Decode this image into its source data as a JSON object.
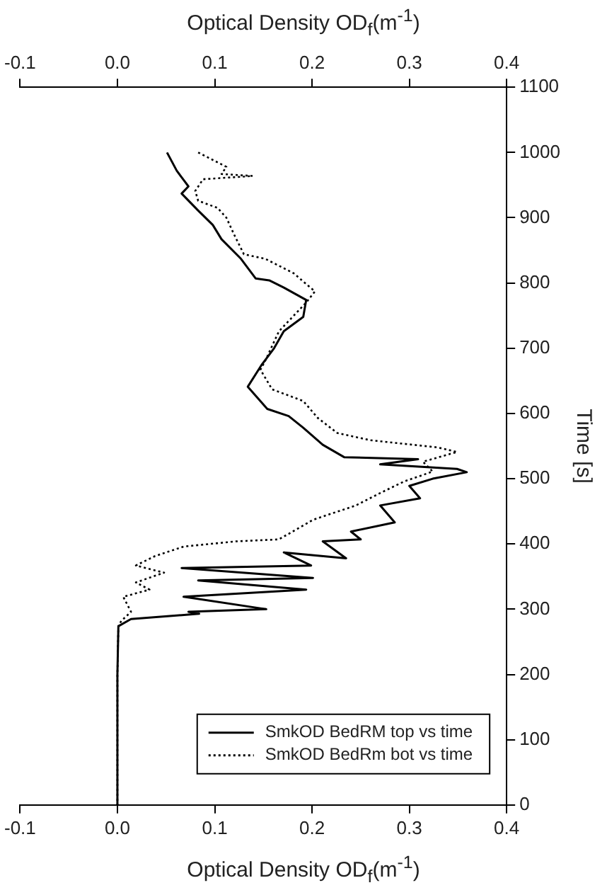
{
  "chart_data": {
    "type": "line",
    "xlabel": "Optical Density OD$_{f}$(m$^{-1}$)",
    "x2label": "Optical Density OD$_{f}$(m$^{-1}$)",
    "ylabel": "Time [s]",
    "xlim": [
      -0.1,
      0.4
    ],
    "xticks": [
      -0.1,
      {
        "value": 0,
        "label": "0.0"
      },
      0.1,
      0.2,
      0.3,
      0.4
    ],
    "x2lim": [
      -0.1,
      0.4
    ],
    "x2ticks": [
      -0.1,
      {
        "value": 0,
        "label": "0.0"
      },
      0.1,
      0.2,
      0.3,
      0.4
    ],
    "ylim": [
      0,
      1100
    ],
    "yticks": [
      0,
      100,
      200,
      300,
      400,
      500,
      600,
      700,
      800,
      900,
      1000,
      1100
    ],
    "grid": false,
    "legend": "bottom right",
    "marker": "none",
    "series": [
      {
        "name": "SmkOD BedRM top vs time",
        "color": "#000000",
        "line_style": "solid",
        "x": [
          0.051,
          0.061,
          0.073,
          0.066,
          0.083,
          0.098,
          0.107,
          0.127,
          0.142,
          0.156,
          0.171,
          0.194,
          0.191,
          0.171,
          0.161,
          0.148,
          0.134,
          0.154,
          0.176,
          0.191,
          0.211,
          0.233,
          0.309,
          0.27,
          0.349,
          0.359,
          0.324,
          0.3,
          0.311,
          0.27,
          0.285,
          0.24,
          0.25,
          0.211,
          0.235,
          0.171,
          0.199,
          0.066,
          0.201,
          0.083,
          0.194,
          0.068,
          0.153,
          0.073,
          0.084,
          0.014,
          0.001,
          0,
          0
        ],
        "values": [
          1000,
          972,
          948,
          937,
          911,
          889,
          867,
          837,
          807,
          804,
          793,
          774,
          748,
          726,
          700,
          674,
          641,
          607,
          596,
          578,
          552,
          533,
          530,
          522,
          515,
          510,
          500,
          489,
          470,
          459,
          433,
          419,
          407,
          404,
          378,
          387,
          367,
          363,
          348,
          344,
          330,
          319,
          300,
          296,
          293,
          285,
          274,
          200,
          0
        ]
      },
      {
        "name": "SmkOD BedRm bot vs time",
        "color": "#000000",
        "line_style": "dotted",
        "x": [
          0.083,
          0.112,
          0.107,
          0.139,
          0.088,
          0.08,
          0.083,
          0.103,
          0.112,
          0.12,
          0.13,
          0.152,
          0.181,
          0.203,
          0.194,
          0.166,
          0.152,
          0.147,
          0.159,
          0.191,
          0.206,
          0.226,
          0.26,
          0.329,
          0.349,
          0.314,
          0.324,
          0.295,
          0.27,
          0.245,
          0.201,
          0.166,
          0.122,
          0.068,
          0.038,
          0.019,
          0.048,
          0.019,
          0.033,
          0.006,
          0.014,
          0.004,
          0.001,
          0,
          0
        ],
        "values": [
          1000,
          978,
          967,
          964,
          959,
          941,
          926,
          915,
          900,
          874,
          844,
          837,
          815,
          787,
          770,
          726,
          681,
          667,
          637,
          619,
          593,
          570,
          559,
          548,
          541,
          526,
          511,
          496,
          478,
          459,
          437,
          407,
          404,
          396,
          381,
          367,
          356,
          341,
          330,
          319,
          296,
          282,
          274,
          200,
          0
        ]
      }
    ]
  }
}
